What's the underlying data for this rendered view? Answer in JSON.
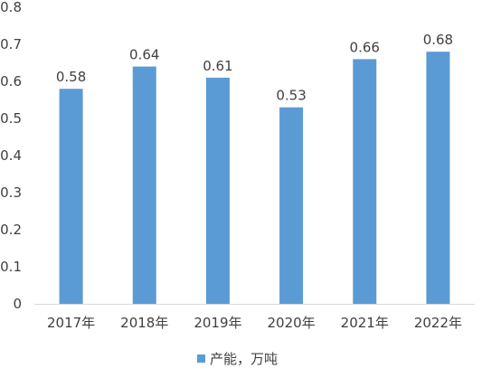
{
  "chart_data": {
    "type": "bar",
    "categories": [
      "2017年",
      "2018年",
      "2019年",
      "2020年",
      "2021年",
      "2022年"
    ],
    "series": [
      {
        "name": "产能，万吨",
        "values": [
          0.58,
          0.64,
          0.61,
          0.53,
          0.66,
          0.68
        ],
        "data_labels": [
          "0.58",
          "0.64",
          "0.61",
          "0.53",
          "0.66",
          "0.68"
        ],
        "color": "#5B9BD5"
      }
    ],
    "ylim": [
      0,
      0.8
    ],
    "yticks": [
      "0",
      "0.1",
      "0.2",
      "0.3",
      "0.4",
      "0.5",
      "0.6",
      "0.7",
      "0.8"
    ],
    "grid": false,
    "legend_position": "bottom",
    "axis_color": "#d9d9d9",
    "text_color": "#404040"
  }
}
